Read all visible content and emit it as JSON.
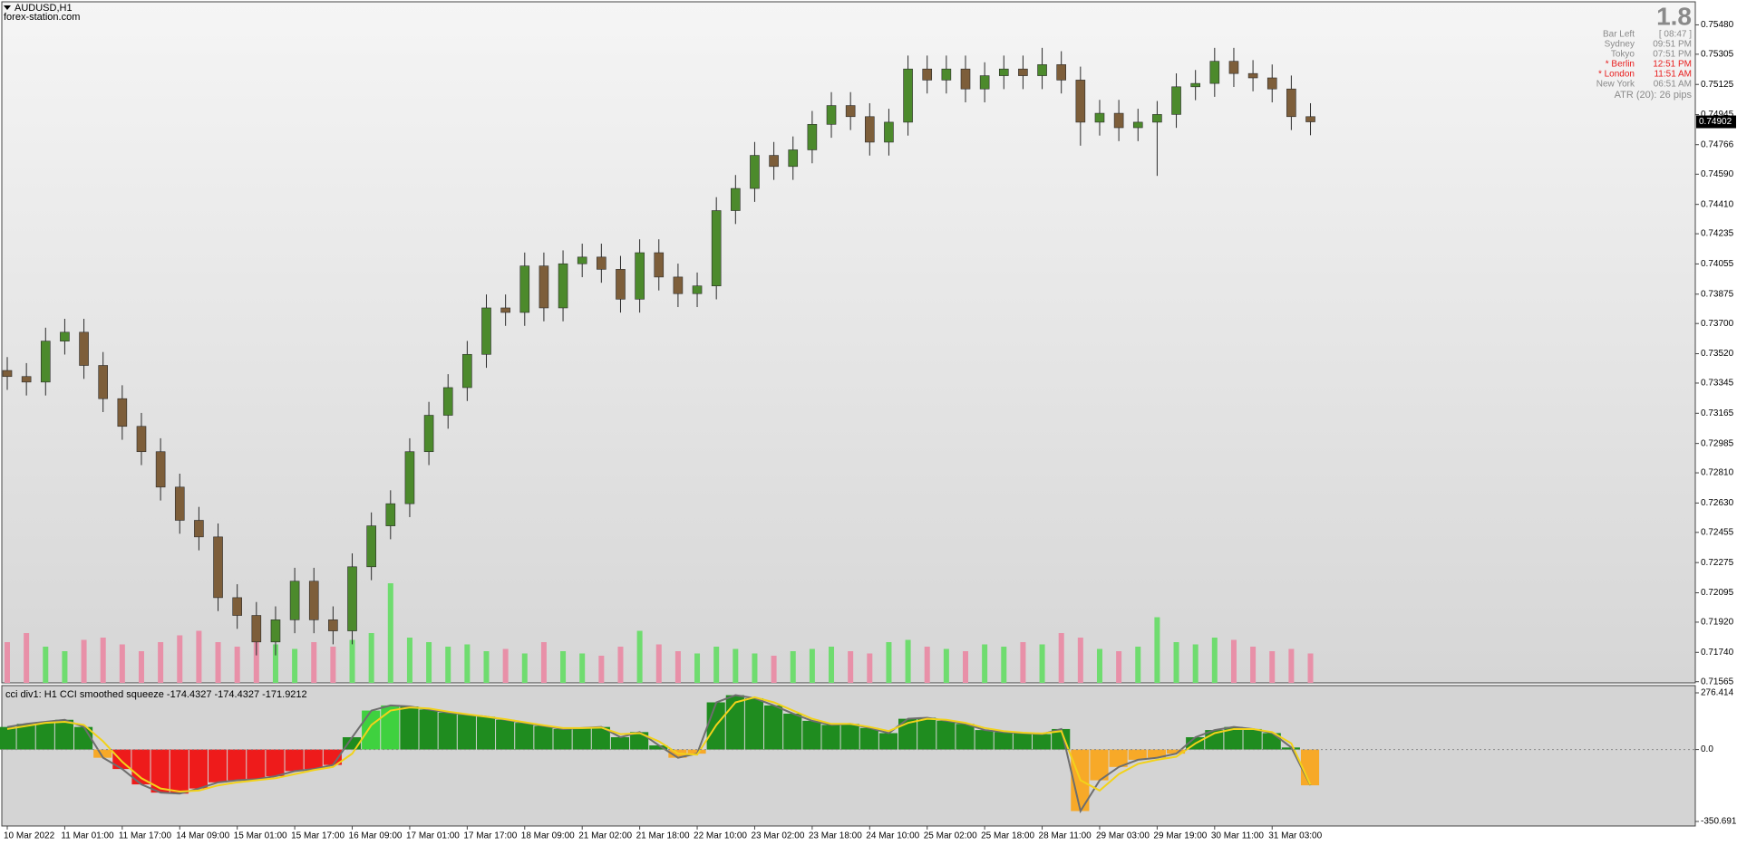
{
  "chart_data": [
    {
      "type": "candlestick",
      "title": "AUDUSD,H1",
      "subtitle": "forex-station.com",
      "categories": [
        "10 Mar 2022",
        null,
        null,
        "11 Mar 01:00",
        null,
        null,
        "11 Mar 17:00",
        null,
        null,
        "14 Mar 09:00",
        null,
        null,
        "15 Mar 01:00",
        null,
        null,
        "15 Mar 17:00",
        null,
        null,
        "16 Mar 09:00",
        null,
        null,
        "17 Mar 01:00",
        null,
        null,
        "17 Mar 17:00",
        null,
        null,
        "18 Mar 09:00",
        null,
        null,
        "21 Mar 02:00",
        null,
        null,
        "21 Mar 18:00",
        null,
        null,
        "22 Mar 10:00",
        null,
        null,
        "23 Mar 02:00",
        null,
        null,
        "23 Mar 18:00",
        null,
        null,
        "24 Mar 10:00",
        null,
        null,
        "25 Mar 02:00",
        null,
        null,
        "25 Mar 18:00",
        null,
        null,
        "28 Mar 11:00",
        null,
        null,
        "29 Mar 03:00",
        null,
        null,
        "29 Mar 19:00",
        null,
        null,
        "30 Mar 11:00",
        null,
        null,
        "31 Mar 03:00",
        null,
        null
      ],
      "open": [
        0.7342,
        0.73384,
        0.73351,
        0.73595,
        0.73648,
        0.7345,
        0.73252,
        0.73087,
        0.72936,
        0.72725,
        0.72527,
        0.72428,
        0.72066,
        0.7196,
        0.71802,
        0.71934,
        0.72164,
        0.71934,
        0.71868,
        0.7225,
        0.72494,
        0.72626,
        0.72936,
        0.73153,
        0.73318,
        0.73516,
        0.73793,
        0.73766,
        0.74043,
        0.73793,
        0.74056,
        0.74096,
        0.74023,
        0.73845,
        0.74122,
        0.73977,
        0.73878,
        0.73924,
        0.74373,
        0.74505,
        0.74702,
        0.74636,
        0.74735,
        0.74887,
        0.74999,
        0.74933,
        0.74781,
        0.749,
        0.75217,
        0.75151,
        0.75217,
        0.75098,
        0.75177,
        0.75217,
        0.75177,
        0.75243,
        0.75151,
        0.749,
        0.74953,
        0.74867,
        0.749,
        0.74946,
        0.75111,
        0.75131,
        0.75263,
        0.7519,
        0.75164,
        0.75098,
        0.74933
      ],
      "high": [
        0.735,
        0.73464,
        0.73675,
        0.73728,
        0.73728,
        0.7353,
        0.73332,
        0.73167,
        0.73016,
        0.72805,
        0.72607,
        0.72508,
        0.72146,
        0.7204,
        0.72014,
        0.72244,
        0.72244,
        0.72014,
        0.7233,
        0.72574,
        0.72706,
        0.73016,
        0.73233,
        0.73398,
        0.73596,
        0.73873,
        0.73873,
        0.74123,
        0.74123,
        0.74136,
        0.74176,
        0.74176,
        0.74103,
        0.74202,
        0.74202,
        0.74057,
        0.74004,
        0.74453,
        0.74585,
        0.74782,
        0.74782,
        0.74815,
        0.74967,
        0.75079,
        0.75079,
        0.75013,
        0.7498,
        0.75297,
        0.75297,
        0.75297,
        0.75297,
        0.75257,
        0.75297,
        0.75297,
        0.75343,
        0.75323,
        0.75231,
        0.75033,
        0.75033,
        0.7498,
        0.75026,
        0.75191,
        0.75211,
        0.75343,
        0.75343,
        0.7527,
        0.75244,
        0.75178,
        0.75013
      ],
      "low": [
        0.73304,
        0.73271,
        0.73271,
        0.73515,
        0.7337,
        0.73172,
        0.73007,
        0.72856,
        0.72645,
        0.72447,
        0.72348,
        0.71986,
        0.7188,
        0.71722,
        0.71722,
        0.71854,
        0.71854,
        0.71788,
        0.71788,
        0.7217,
        0.72414,
        0.72546,
        0.72856,
        0.73073,
        0.73238,
        0.73436,
        0.73686,
        0.73686,
        0.73713,
        0.73713,
        0.73976,
        0.73943,
        0.73765,
        0.73765,
        0.73897,
        0.73798,
        0.73798,
        0.73844,
        0.74293,
        0.74425,
        0.74556,
        0.74556,
        0.74655,
        0.74807,
        0.74853,
        0.74701,
        0.74701,
        0.7482,
        0.75071,
        0.75071,
        0.75018,
        0.75018,
        0.75097,
        0.75097,
        0.75097,
        0.75071,
        0.7476,
        0.7482,
        0.74787,
        0.74787,
        0.7458,
        0.74866,
        0.75031,
        0.75051,
        0.7511,
        0.75084,
        0.75018,
        0.74853,
        0.74822
      ],
      "close": [
        0.73384,
        0.73351,
        0.73595,
        0.73648,
        0.7345,
        0.73252,
        0.73087,
        0.72936,
        0.72725,
        0.72527,
        0.72428,
        0.72066,
        0.7196,
        0.71802,
        0.71934,
        0.72164,
        0.71934,
        0.71868,
        0.7225,
        0.72494,
        0.72626,
        0.72936,
        0.73153,
        0.73318,
        0.73516,
        0.73793,
        0.73766,
        0.74043,
        0.73793,
        0.74056,
        0.74096,
        0.74023,
        0.73845,
        0.74122,
        0.73977,
        0.73878,
        0.73924,
        0.74373,
        0.74505,
        0.74702,
        0.74636,
        0.74735,
        0.74887,
        0.74999,
        0.74933,
        0.74781,
        0.749,
        0.75217,
        0.75151,
        0.75217,
        0.75098,
        0.75177,
        0.75217,
        0.75177,
        0.75243,
        0.75151,
        0.749,
        0.74953,
        0.74867,
        0.749,
        0.74946,
        0.75111,
        0.75131,
        0.75263,
        0.7519,
        0.75164,
        0.75098,
        0.74933,
        0.74902
      ],
      "up_color": "#4c8a2c",
      "down_color": "#7d5e3a",
      "wick_color": "#2a2a2a",
      "volume": {
        "values": [
          900,
          1100,
          800,
          700,
          950,
          1000,
          850,
          700,
          900,
          1050,
          1150,
          900,
          800,
          1000,
          850,
          750,
          900,
          800,
          950,
          1100,
          2200,
          1000,
          900,
          800,
          850,
          700,
          750,
          650,
          900,
          700,
          650,
          600,
          800,
          1150,
          850,
          700,
          650,
          800,
          750,
          650,
          600,
          700,
          750,
          800,
          700,
          650,
          900,
          950,
          800,
          750,
          700,
          850,
          800,
          900,
          850,
          1100,
          1000,
          750,
          700,
          800,
          1450,
          900,
          850,
          1000,
          950,
          800,
          700,
          750,
          650
        ],
        "up_color": "#6fdc6f",
        "down_color": "#e890a8"
      },
      "ylim": [
        0.71558,
        0.75612
      ],
      "yticks": [
        {
          "value": 0.7548,
          "label": "0.75480"
        },
        {
          "value": 0.75305,
          "label": "0.75305"
        },
        {
          "value": 0.75125,
          "label": "0.75125"
        },
        {
          "value": 0.74945,
          "label": "0.74945"
        },
        {
          "value": 0.74766,
          "label": "0.74766"
        },
        {
          "value": 0.7459,
          "label": "0.74590"
        },
        {
          "value": 0.7441,
          "label": "0.74410"
        },
        {
          "value": 0.74235,
          "label": "0.74235"
        },
        {
          "value": 0.74055,
          "label": "0.74055"
        },
        {
          "value": 0.73875,
          "label": "0.73875"
        },
        {
          "value": 0.737,
          "label": "0.73700"
        },
        {
          "value": 0.7352,
          "label": "0.73520"
        },
        {
          "value": 0.73345,
          "label": "0.73345"
        },
        {
          "value": 0.73165,
          "label": "0.73165"
        },
        {
          "value": 0.72985,
          "label": "0.72985"
        },
        {
          "value": 0.7281,
          "label": "0.72810"
        },
        {
          "value": 0.7263,
          "label": "0.72630"
        },
        {
          "value": 0.72455,
          "label": "0.72455"
        },
        {
          "value": 0.72275,
          "label": "0.72275"
        },
        {
          "value": 0.72095,
          "label": "0.72095"
        },
        {
          "value": 0.7192,
          "label": "0.71920"
        },
        {
          "value": 0.7174,
          "label": "0.71740"
        },
        {
          "value": 0.71565,
          "label": "0.71565"
        }
      ],
      "last_price": {
        "value": 0.74902,
        "label": "0.74902"
      }
    },
    {
      "type": "histogram",
      "title": "cci div1: H1 CCI smoothed squeeze -174.4327 -174.4327 -171.9212",
      "values": [
        110,
        125,
        135,
        145,
        110,
        -40,
        -95,
        -170,
        -210,
        -215,
        -190,
        -160,
        -150,
        -145,
        -130,
        -105,
        -95,
        -75,
        60,
        190,
        215,
        210,
        195,
        180,
        170,
        160,
        145,
        130,
        115,
        100,
        105,
        110,
        60,
        85,
        20,
        -40,
        -20,
        230,
        265,
        250,
        215,
        175,
        140,
        120,
        125,
        105,
        80,
        150,
        155,
        140,
        125,
        95,
        85,
        80,
        75,
        100,
        -300,
        -150,
        -85,
        -50,
        -40,
        -20,
        60,
        95,
        110,
        100,
        80,
        10,
        -174.4327
      ],
      "colors": [
        "#1f8c1f",
        "#1f8c1f",
        "#1f8c1f",
        "#1f8c1f",
        "#1f8c1f",
        "#f7a928",
        "#ee1b1b",
        "#ee1b1b",
        "#ee1b1b",
        "#ee1b1b",
        "#ee1b1b",
        "#ee1b1b",
        "#ee1b1b",
        "#ee1b1b",
        "#ee1b1b",
        "#ee1b1b",
        "#ee1b1b",
        "#ee1b1b",
        "#1f8c1f",
        "#3fd13f",
        "#3fd13f",
        "#1f8c1f",
        "#1f8c1f",
        "#1f8c1f",
        "#1f8c1f",
        "#1f8c1f",
        "#1f8c1f",
        "#1f8c1f",
        "#1f8c1f",
        "#1f8c1f",
        "#1f8c1f",
        "#1f8c1f",
        "#1f8c1f",
        "#1f8c1f",
        "#1f8c1f",
        "#f7a928",
        "#f7a928",
        "#1f8c1f",
        "#1f8c1f",
        "#1f8c1f",
        "#1f8c1f",
        "#1f8c1f",
        "#1f8c1f",
        "#1f8c1f",
        "#1f8c1f",
        "#1f8c1f",
        "#1f8c1f",
        "#1f8c1f",
        "#1f8c1f",
        "#1f8c1f",
        "#1f8c1f",
        "#1f8c1f",
        "#1f8c1f",
        "#1f8c1f",
        "#1f8c1f",
        "#1f8c1f",
        "#f7a928",
        "#f7a928",
        "#f7a928",
        "#f7a928",
        "#f7a928",
        "#f7a928",
        "#1f8c1f",
        "#1f8c1f",
        "#1f8c1f",
        "#1f8c1f",
        "#1f8c1f",
        "#1f8c1f",
        "#f7a928"
      ],
      "outline_color": "#6e6e6e",
      "signal": {
        "values": [
          100,
          115,
          130,
          135,
          120,
          40,
          -60,
          -140,
          -190,
          -205,
          -200,
          -175,
          -160,
          -150,
          -140,
          -120,
          -100,
          -85,
          -20,
          120,
          190,
          205,
          200,
          185,
          172,
          160,
          148,
          133,
          118,
          105,
          105,
          107,
          75,
          80,
          40,
          -20,
          -25,
          120,
          230,
          255,
          230,
          190,
          150,
          125,
          125,
          110,
          90,
          130,
          150,
          145,
          130,
          105,
          90,
          82,
          78,
          90,
          -150,
          -200,
          -120,
          -70,
          -50,
          -35,
          30,
          80,
          100,
          100,
          85,
          30,
          -171.9212
        ],
        "color": "#f2d21a"
      },
      "ylim": [
        -350.6917,
        276.414
      ],
      "yticks": [
        276.414,
        {
          "value": 0,
          "label": "0.0"
        },
        -350.6917
      ]
    }
  ],
  "info_panel": {
    "spread": "1.8",
    "rows": [
      {
        "label": "Bar Left",
        "value": "[ 08:47 ]",
        "color": "#8a8a8a"
      },
      {
        "label": "Sydney",
        "value": "09:51 PM",
        "color": "#8a8a8a"
      },
      {
        "label": "Tokyo",
        "value": "07:51 PM",
        "color": "#8a8a8a"
      },
      {
        "label": "* Berlin",
        "value": "12:51 PM",
        "color": "#e81c1c"
      },
      {
        "label": "* London",
        "value": "11:51 AM",
        "color": "#e81c1c"
      },
      {
        "label": "New York",
        "value": "06:51 AM",
        "color": "#8a8a8a"
      }
    ],
    "atr": "ATR (20): 26 pips"
  }
}
